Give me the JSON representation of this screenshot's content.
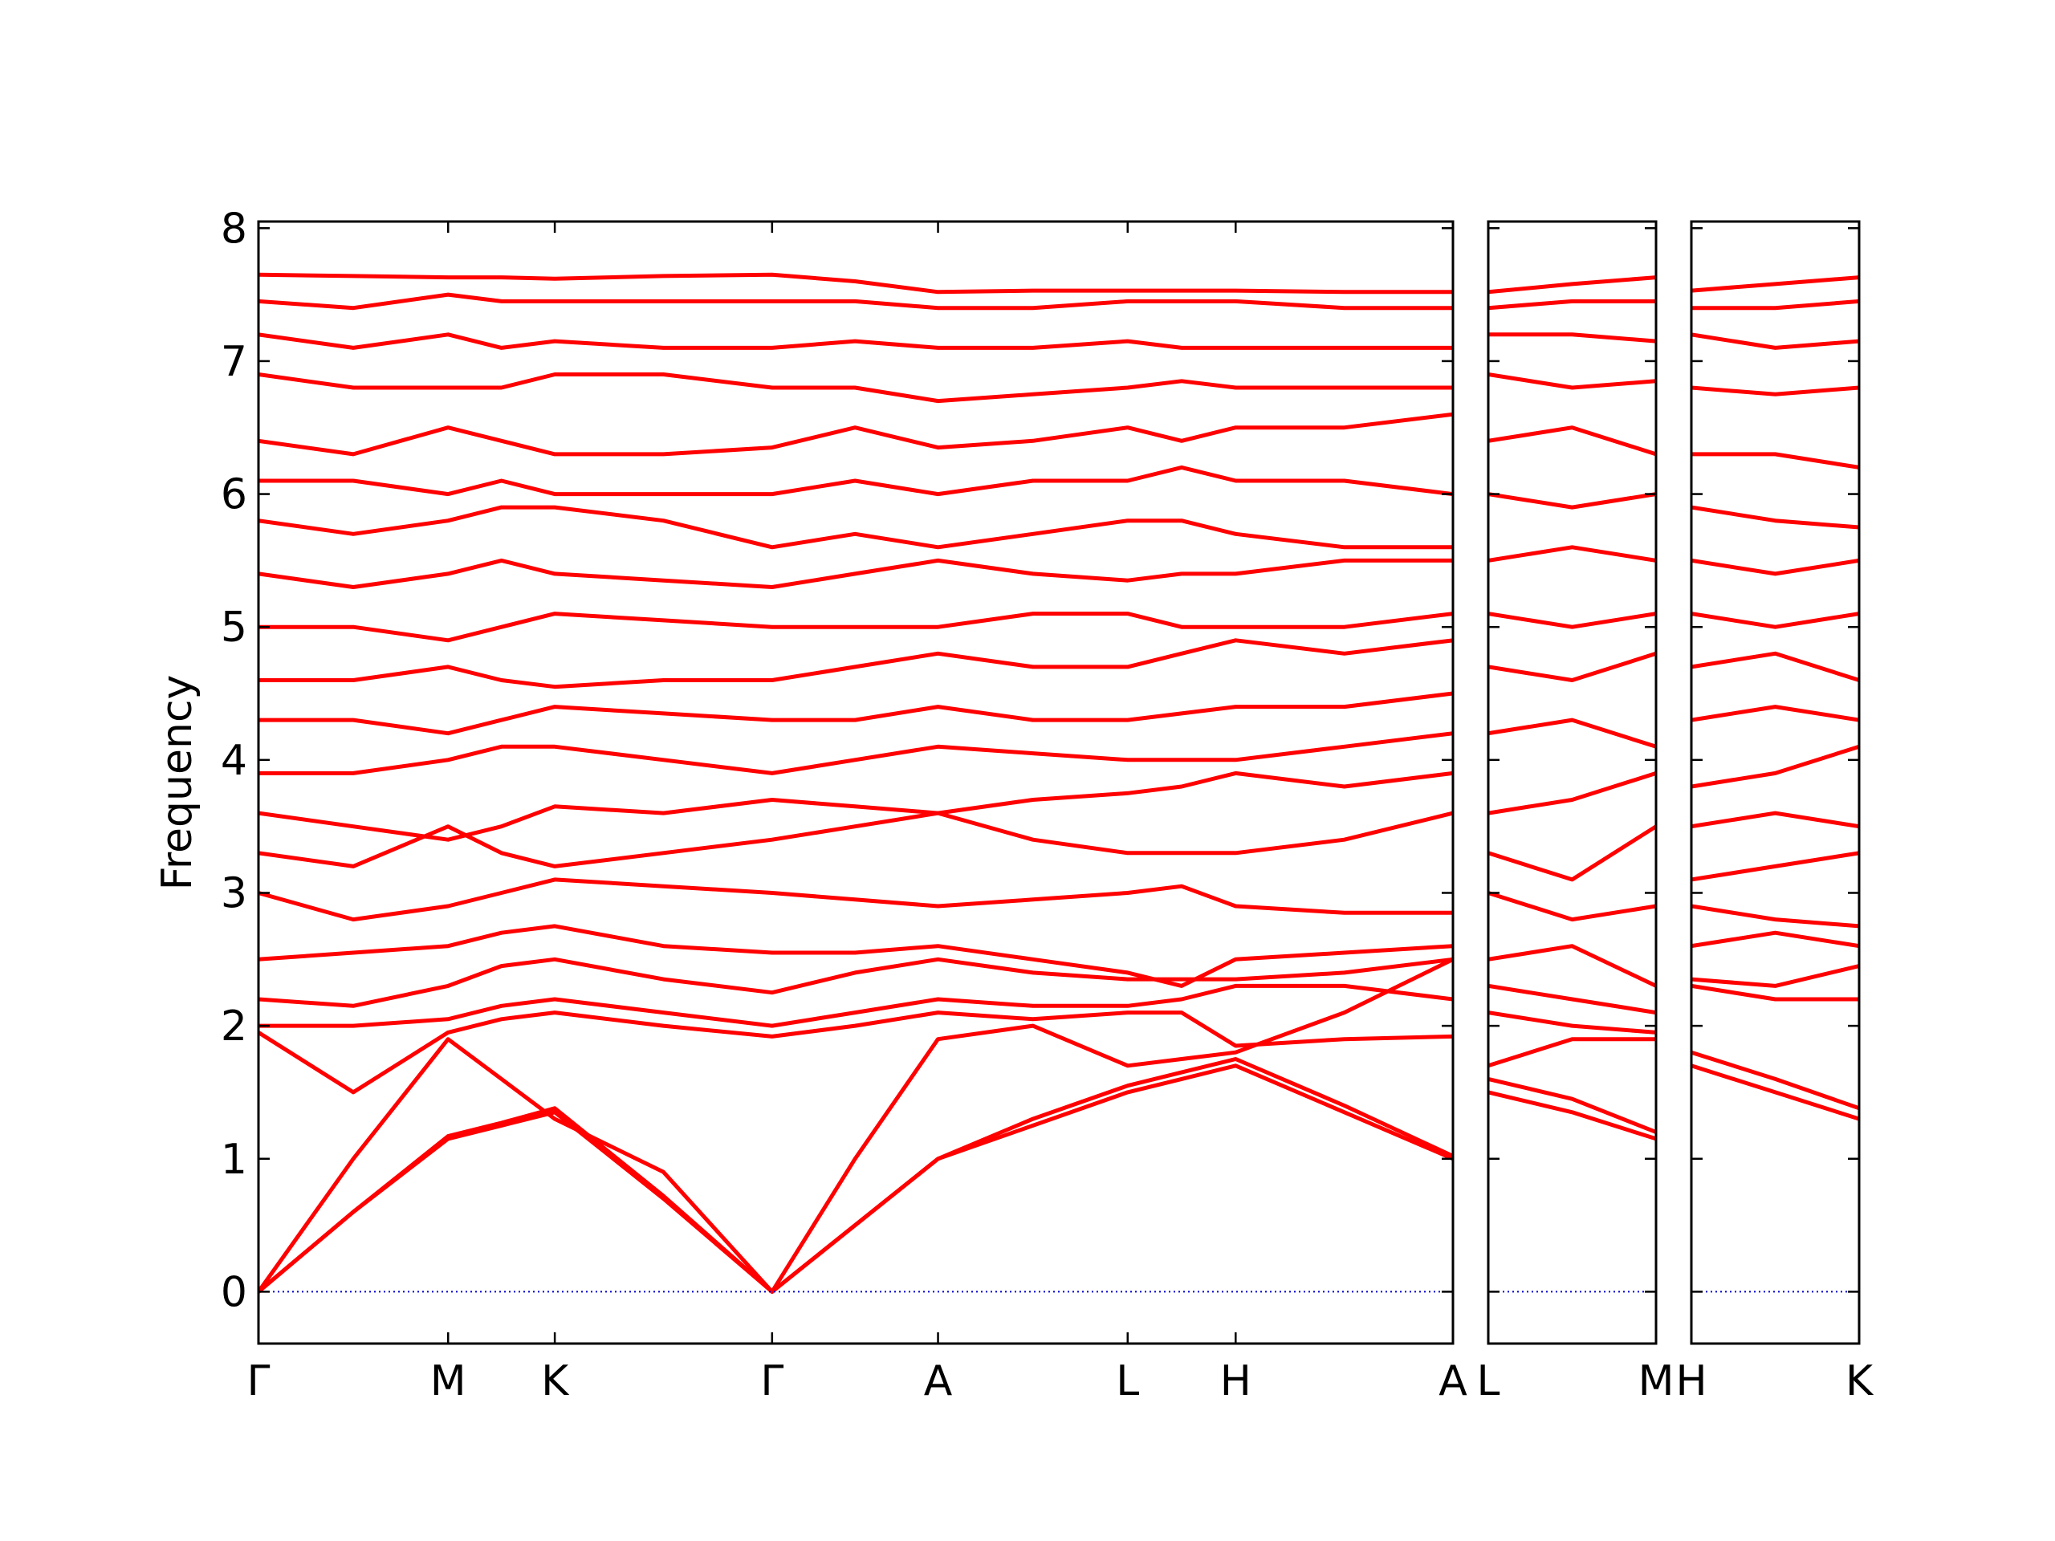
{
  "chart_data": [
    {
      "type": "line",
      "ylabel": "Frequency",
      "color": "#ff0000",
      "ytick_labels": true,
      "zero_line": {
        "value": 0,
        "color": "#0000cc"
      },
      "ylim": [
        -0.39,
        8.05
      ],
      "yticks": [
        0,
        1,
        2,
        3,
        4,
        5,
        6,
        7,
        8
      ],
      "xlim": [
        0,
        9.07
      ],
      "xticks": [
        {
          "value": 0,
          "label": "Γ"
        },
        {
          "value": 1.44,
          "label": "M"
        },
        {
          "value": 2.25,
          "label": "K"
        },
        {
          "value": 3.9,
          "label": "Γ"
        },
        {
          "value": 5.16,
          "label": "A"
        },
        {
          "value": 6.6,
          "label": "L"
        },
        {
          "value": 7.42,
          "label": "H"
        },
        {
          "value": 9.07,
          "label": "A"
        }
      ],
      "x": [
        0,
        0.72,
        1.44,
        1.845,
        2.25,
        3.075,
        3.9,
        4.53,
        5.16,
        5.88,
        6.6,
        7.01,
        7.42,
        8.245,
        9.07
      ],
      "series": [
        {
          "values": [
            0,
            0.6,
            1.15,
            1.25,
            1.35,
            0.7,
            0,
            0.5,
            1.0,
            1.25,
            1.5,
            1.6,
            1.7,
            1.35,
            1.0
          ]
        },
        {
          "values": [
            0,
            0.6,
            1.17,
            1.27,
            1.38,
            0.72,
            0,
            0.5,
            1.0,
            1.3,
            1.55,
            1.65,
            1.75,
            1.4,
            1.02
          ]
        },
        {
          "values": [
            0,
            1.0,
            1.9,
            1.6,
            1.3,
            0.9,
            0,
            1.0,
            1.9,
            2.0,
            1.7,
            1.75,
            1.8,
            2.1,
            2.5
          ]
        },
        {
          "values": [
            1.95,
            1.5,
            1.95,
            2.05,
            2.1,
            2.0,
            1.92,
            2.0,
            2.1,
            2.05,
            2.1,
            2.1,
            1.85,
            1.9,
            1.92
          ]
        },
        {
          "values": [
            2.0,
            2.0,
            2.05,
            2.15,
            2.2,
            2.1,
            2.0,
            2.1,
            2.2,
            2.15,
            2.15,
            2.2,
            2.3,
            2.3,
            2.2
          ]
        },
        {
          "values": [
            2.2,
            2.15,
            2.3,
            2.45,
            2.5,
            2.35,
            2.25,
            2.4,
            2.5,
            2.4,
            2.35,
            2.35,
            2.35,
            2.4,
            2.5
          ]
        },
        {
          "values": [
            2.5,
            2.55,
            2.6,
            2.7,
            2.75,
            2.6,
            2.55,
            2.55,
            2.6,
            2.5,
            2.4,
            2.3,
            2.5,
            2.55,
            2.6
          ]
        },
        {
          "values": [
            3.0,
            2.8,
            2.9,
            3.0,
            3.1,
            3.05,
            3.0,
            2.95,
            2.9,
            2.95,
            3.0,
            3.05,
            2.9,
            2.85,
            2.85
          ]
        },
        {
          "values": [
            3.3,
            3.2,
            3.5,
            3.3,
            3.2,
            3.3,
            3.4,
            3.5,
            3.6,
            3.4,
            3.3,
            3.3,
            3.3,
            3.4,
            3.6
          ]
        },
        {
          "values": [
            3.6,
            3.5,
            3.4,
            3.5,
            3.65,
            3.6,
            3.7,
            3.65,
            3.6,
            3.7,
            3.75,
            3.8,
            3.9,
            3.8,
            3.9
          ]
        },
        {
          "values": [
            3.9,
            3.9,
            4.0,
            4.1,
            4.1,
            4.0,
            3.9,
            4.0,
            4.1,
            4.05,
            4.0,
            4.0,
            4.0,
            4.1,
            4.2
          ]
        },
        {
          "values": [
            4.3,
            4.3,
            4.2,
            4.3,
            4.4,
            4.35,
            4.3,
            4.3,
            4.4,
            4.3,
            4.3,
            4.35,
            4.4,
            4.4,
            4.5
          ]
        },
        {
          "values": [
            4.6,
            4.6,
            4.7,
            4.6,
            4.55,
            4.6,
            4.6,
            4.7,
            4.8,
            4.7,
            4.7,
            4.8,
            4.9,
            4.8,
            4.9
          ]
        },
        {
          "values": [
            5.0,
            5.0,
            4.9,
            5.0,
            5.1,
            5.05,
            5.0,
            5.0,
            5.0,
            5.1,
            5.1,
            5.0,
            5.0,
            5.0,
            5.1
          ]
        },
        {
          "values": [
            5.4,
            5.3,
            5.4,
            5.5,
            5.4,
            5.35,
            5.3,
            5.4,
            5.5,
            5.4,
            5.35,
            5.4,
            5.4,
            5.5,
            5.5
          ]
        },
        {
          "values": [
            5.8,
            5.7,
            5.8,
            5.9,
            5.9,
            5.8,
            5.6,
            5.7,
            5.6,
            5.7,
            5.8,
            5.8,
            5.7,
            5.6,
            5.6
          ]
        },
        {
          "values": [
            6.1,
            6.1,
            6.0,
            6.1,
            6.0,
            6.0,
            6.0,
            6.1,
            6.0,
            6.1,
            6.1,
            6.2,
            6.1,
            6.1,
            6.0
          ]
        },
        {
          "values": [
            6.4,
            6.3,
            6.5,
            6.4,
            6.3,
            6.3,
            6.35,
            6.5,
            6.35,
            6.4,
            6.5,
            6.4,
            6.5,
            6.5,
            6.6
          ]
        },
        {
          "values": [
            6.9,
            6.8,
            6.8,
            6.8,
            6.9,
            6.9,
            6.8,
            6.8,
            6.7,
            6.75,
            6.8,
            6.85,
            6.8,
            6.8,
            6.8
          ]
        },
        {
          "values": [
            7.2,
            7.1,
            7.2,
            7.1,
            7.15,
            7.1,
            7.1,
            7.15,
            7.1,
            7.1,
            7.15,
            7.1,
            7.1,
            7.1,
            7.1
          ]
        },
        {
          "values": [
            7.45,
            7.4,
            7.5,
            7.45,
            7.45,
            7.45,
            7.45,
            7.45,
            7.4,
            7.4,
            7.45,
            7.45,
            7.45,
            7.4,
            7.4
          ]
        },
        {
          "values": [
            7.65,
            7.64,
            7.63,
            7.63,
            7.62,
            7.64,
            7.65,
            7.6,
            7.52,
            7.53,
            7.53,
            7.53,
            7.53,
            7.52,
            7.52
          ]
        }
      ]
    },
    {
      "type": "line",
      "color": "#ff0000",
      "ytick_labels": false,
      "zero_line": {
        "value": 0,
        "color": "#0000cc"
      },
      "ylim": [
        -0.39,
        8.05
      ],
      "yticks": [
        0,
        1,
        2,
        3,
        4,
        5,
        6,
        7,
        8
      ],
      "xlim": [
        0,
        1.27
      ],
      "xticks": [
        {
          "value": 0,
          "label": "L"
        },
        {
          "value": 1.27,
          "label": "M"
        }
      ],
      "x": [
        0,
        0.635,
        1.27
      ],
      "series": [
        {
          "values": [
            1.5,
            1.35,
            1.15
          ]
        },
        {
          "values": [
            1.6,
            1.45,
            1.2
          ]
        },
        {
          "values": [
            1.7,
            1.9,
            1.9
          ]
        },
        {
          "values": [
            2.1,
            2.0,
            1.95
          ]
        },
        {
          "values": [
            2.3,
            2.2,
            2.1
          ]
        },
        {
          "values": [
            2.5,
            2.6,
            2.3
          ]
        },
        {
          "values": [
            3.0,
            2.8,
            2.9
          ]
        },
        {
          "values": [
            3.3,
            3.1,
            3.5
          ]
        },
        {
          "values": [
            3.6,
            3.7,
            3.9
          ]
        },
        {
          "values": [
            4.2,
            4.3,
            4.1
          ]
        },
        {
          "values": [
            4.7,
            4.6,
            4.8
          ]
        },
        {
          "values": [
            5.1,
            5.0,
            5.1
          ]
        },
        {
          "values": [
            5.5,
            5.6,
            5.5
          ]
        },
        {
          "values": [
            6.0,
            5.9,
            6.0
          ]
        },
        {
          "values": [
            6.4,
            6.5,
            6.3
          ]
        },
        {
          "values": [
            6.9,
            6.8,
            6.85
          ]
        },
        {
          "values": [
            7.2,
            7.2,
            7.15
          ]
        },
        {
          "values": [
            7.4,
            7.45,
            7.45
          ]
        },
        {
          "values": [
            7.52,
            7.58,
            7.63
          ]
        }
      ]
    },
    {
      "type": "line",
      "color": "#ff0000",
      "ytick_labels": false,
      "zero_line": {
        "value": 0,
        "color": "#0000cc"
      },
      "ylim": [
        -0.39,
        8.05
      ],
      "yticks": [
        0,
        1,
        2,
        3,
        4,
        5,
        6,
        7,
        8
      ],
      "xlim": [
        0,
        1.27
      ],
      "xticks": [
        {
          "value": 0,
          "label": "H"
        },
        {
          "value": 1.27,
          "label": "K"
        }
      ],
      "x": [
        0,
        0.635,
        1.27
      ],
      "series": [
        {
          "values": [
            1.7,
            1.5,
            1.3
          ]
        },
        {
          "values": [
            1.8,
            1.6,
            1.38
          ]
        },
        {
          "values": [
            2.3,
            2.2,
            2.2
          ]
        },
        {
          "values": [
            2.35,
            2.3,
            2.45
          ]
        },
        {
          "values": [
            2.6,
            2.7,
            2.6
          ]
        },
        {
          "values": [
            2.9,
            2.8,
            2.75
          ]
        },
        {
          "values": [
            3.1,
            3.2,
            3.3
          ]
        },
        {
          "values": [
            3.5,
            3.6,
            3.5
          ]
        },
        {
          "values": [
            3.8,
            3.9,
            4.1
          ]
        },
        {
          "values": [
            4.3,
            4.4,
            4.3
          ]
        },
        {
          "values": [
            4.7,
            4.8,
            4.6
          ]
        },
        {
          "values": [
            5.1,
            5.0,
            5.1
          ]
        },
        {
          "values": [
            5.5,
            5.4,
            5.5
          ]
        },
        {
          "values": [
            5.9,
            5.8,
            5.75
          ]
        },
        {
          "values": [
            6.3,
            6.3,
            6.2
          ]
        },
        {
          "values": [
            6.8,
            6.75,
            6.8
          ]
        },
        {
          "values": [
            7.2,
            7.1,
            7.15
          ]
        },
        {
          "values": [
            7.4,
            7.4,
            7.45
          ]
        },
        {
          "values": [
            7.53,
            7.58,
            7.63
          ]
        }
      ]
    }
  ]
}
